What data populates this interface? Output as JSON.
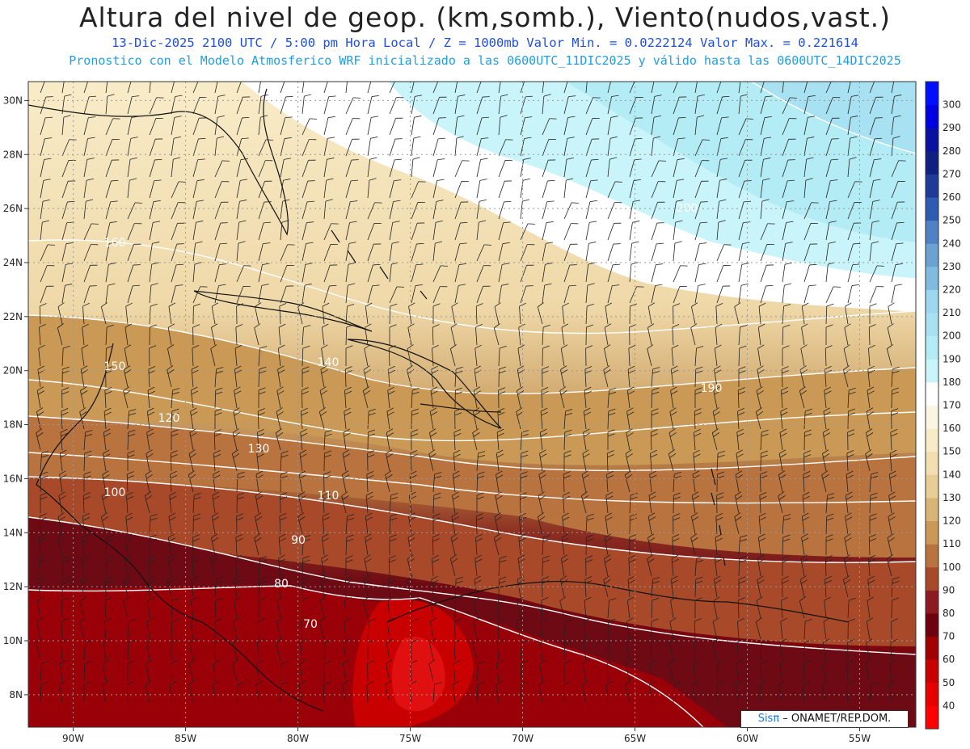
{
  "header": {
    "title": "Altura del nivel de geop. (km,somb.), Viento(nudos,vast.)",
    "subtitle1": "13-Dic-2025  2100 UTC / 5:00 pm Hora Local / Z = 1000mb  Valor Min. = 0.0222124  Valor Max. = 0.221614",
    "subtitle2": "Pronostico con el Modelo Atmosferico WRF inicializado a las 0600UTC_11DIC2025 y válido hasta las  0600UTC_14DIC2025"
  },
  "map": {
    "lon_range": [
      -92,
      -52.5
    ],
    "lat_range": [
      6.8,
      30.7
    ],
    "lon_ticks": [
      "90W",
      "85W",
      "80W",
      "75W",
      "70W",
      "65W",
      "60W",
      "55W"
    ],
    "lat_ticks": [
      "8N",
      "10N",
      "12N",
      "14N",
      "16N",
      "18N",
      "20N",
      "22N",
      "24N",
      "26N",
      "28N",
      "30N"
    ],
    "contour_labels": [
      "70",
      "80",
      "90",
      "100",
      "110",
      "120",
      "130",
      "140",
      "150",
      "160",
      "190",
      "200"
    ],
    "grid": "dotted"
  },
  "colorbar": {
    "levels": [
      "40",
      "50",
      "60",
      "70",
      "80",
      "90",
      "100",
      "110",
      "120",
      "130",
      "140",
      "150",
      "160",
      "170",
      "180",
      "190",
      "200",
      "210",
      "220",
      "230",
      "240",
      "250",
      "260",
      "270",
      "280",
      "290",
      "300"
    ],
    "colors": [
      "#ff0000",
      "#e60000",
      "#c80000",
      "#a00000",
      "#6e0010",
      "#8c1a20",
      "#a84a2a",
      "#b8733e",
      "#c99955",
      "#d8b476",
      "#e8cd94",
      "#f2deb0",
      "#f8ecc8",
      "#fbf6e4",
      "#ffffff",
      "#c8f4fa",
      "#b4ecf6",
      "#a8e2f2",
      "#9cd8ee",
      "#80bce0",
      "#6aa2d2",
      "#4f82c4",
      "#2f5bb0",
      "#1f3a98",
      "#102080",
      "#0a10a0",
      "#0000e0",
      "#0010ff"
    ]
  },
  "credit": {
    "brand": "Sisπ",
    "text": " – ONAMET/REP.DOM."
  }
}
